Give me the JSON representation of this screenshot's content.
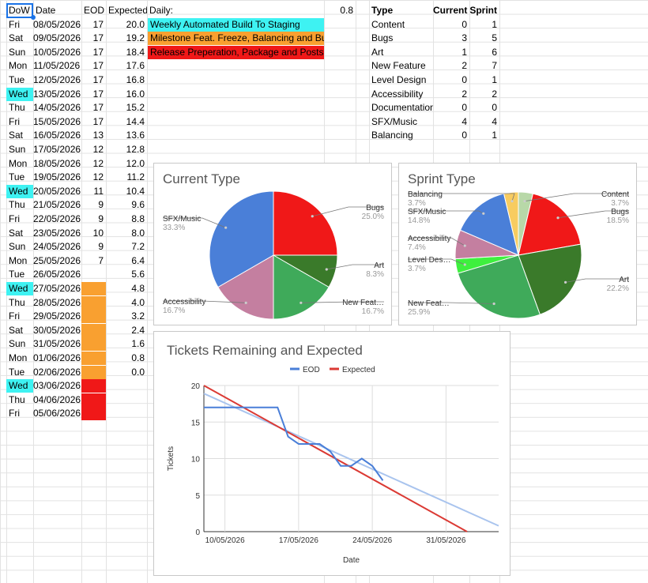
{
  "headers": {
    "dow": "DoW",
    "date": "Date",
    "eod": "EOD",
    "expected": "Expected",
    "daily": "Daily:",
    "daily_value": "0.8",
    "type": "Type",
    "current": "Current",
    "sprint": "Sprint"
  },
  "rows": [
    {
      "dow": "Fri",
      "date": "08/05/2026",
      "eod": "17",
      "expected": "20.0"
    },
    {
      "dow": "Sat",
      "date": "09/05/2026",
      "eod": "17",
      "expected": "19.2"
    },
    {
      "dow": "Sun",
      "date": "10/05/2026",
      "eod": "17",
      "expected": "18.4"
    },
    {
      "dow": "Mon",
      "date": "11/05/2026",
      "eod": "17",
      "expected": "17.6"
    },
    {
      "dow": "Tue",
      "date": "12/05/2026",
      "eod": "17",
      "expected": "16.8"
    },
    {
      "dow": "Wed",
      "date": "13/05/2026",
      "eod": "17",
      "expected": "16.0"
    },
    {
      "dow": "Thu",
      "date": "14/05/2026",
      "eod": "17",
      "expected": "15.2"
    },
    {
      "dow": "Fri",
      "date": "15/05/2026",
      "eod": "17",
      "expected": "14.4"
    },
    {
      "dow": "Sat",
      "date": "16/05/2026",
      "eod": "13",
      "expected": "13.6"
    },
    {
      "dow": "Sun",
      "date": "17/05/2026",
      "eod": "12",
      "expected": "12.8"
    },
    {
      "dow": "Mon",
      "date": "18/05/2026",
      "eod": "12",
      "expected": "12.0"
    },
    {
      "dow": "Tue",
      "date": "19/05/2026",
      "eod": "12",
      "expected": "11.2"
    },
    {
      "dow": "Wed",
      "date": "20/05/2026",
      "eod": "11",
      "expected": "10.4"
    },
    {
      "dow": "Thu",
      "date": "21/05/2026",
      "eod": "9",
      "expected": "9.6"
    },
    {
      "dow": "Fri",
      "date": "22/05/2026",
      "eod": "9",
      "expected": "8.8"
    },
    {
      "dow": "Sat",
      "date": "23/05/2026",
      "eod": "10",
      "expected": "8.0"
    },
    {
      "dow": "Sun",
      "date": "24/05/2026",
      "eod": "9",
      "expected": "7.2"
    },
    {
      "dow": "Mon",
      "date": "25/05/2026",
      "eod": "7",
      "expected": "6.4"
    },
    {
      "dow": "Tue",
      "date": "26/05/2026",
      "eod": "",
      "expected": "5.6"
    },
    {
      "dow": "Wed",
      "date": "27/05/2026",
      "eod": "",
      "expected": "4.8"
    },
    {
      "dow": "Thu",
      "date": "28/05/2026",
      "eod": "",
      "expected": "4.0"
    },
    {
      "dow": "Fri",
      "date": "29/05/2026",
      "eod": "",
      "expected": "3.2"
    },
    {
      "dow": "Sat",
      "date": "30/05/2026",
      "eod": "",
      "expected": "2.4"
    },
    {
      "dow": "Sun",
      "date": "31/05/2026",
      "eod": "",
      "expected": "1.6"
    },
    {
      "dow": "Mon",
      "date": "01/06/2026",
      "eod": "",
      "expected": "0.8"
    },
    {
      "dow": "Tue",
      "date": "02/06/2026",
      "eod": "",
      "expected": "0.0"
    },
    {
      "dow": "Wed",
      "date": "03/06/2026",
      "eod": "",
      "expected": ""
    },
    {
      "dow": "Thu",
      "date": "04/06/2026",
      "eod": "",
      "expected": ""
    },
    {
      "dow": "Fri",
      "date": "05/06/2026",
      "eod": "",
      "expected": ""
    }
  ],
  "legend_notes": [
    {
      "text": "Weekly Automated Build To Staging",
      "color": "#3ef2f2"
    },
    {
      "text": "Milestone Feat. Freeze, Balancing and Bugs",
      "color": "#f9a030"
    },
    {
      "text": "Release Preperation, Package and Posts",
      "color": "#f01818"
    }
  ],
  "types": [
    {
      "type": "Content",
      "current": "0",
      "sprint": "1"
    },
    {
      "type": "Bugs",
      "current": "3",
      "sprint": "5"
    },
    {
      "type": "Art",
      "current": "1",
      "sprint": "6"
    },
    {
      "type": "New Feature",
      "current": "2",
      "sprint": "7"
    },
    {
      "type": "Level Design",
      "current": "0",
      "sprint": "1"
    },
    {
      "type": "Accessibility",
      "current": "2",
      "sprint": "2"
    },
    {
      "type": "Documentation",
      "current": "0",
      "sprint": "0"
    },
    {
      "type": "SFX/Music",
      "current": "4",
      "sprint": "4"
    },
    {
      "type": "Balancing",
      "current": "0",
      "sprint": "1"
    }
  ],
  "colors": {
    "wed_highlight": "#3ef2f2",
    "orange": "#f9a030",
    "red": "#f01818",
    "eod_line": "#4a7fd8",
    "expected_line": "#db3a34",
    "trend_line": "#a9c4ee"
  },
  "chart_data": [
    {
      "type": "pie",
      "title": "Current Type",
      "slices": [
        {
          "label": "Bugs",
          "value": 3,
          "percent": "25.0%",
          "color": "#f01818"
        },
        {
          "label": "Art",
          "value": 1,
          "percent": "8.3%",
          "color": "#3a7a2a"
        },
        {
          "label": "New Feat…",
          "value": 2,
          "percent": "16.7%",
          "color": "#3faa5a"
        },
        {
          "label": "Accessibility",
          "value": 2,
          "percent": "16.7%",
          "color": "#c47fa0"
        },
        {
          "label": "SFX/Music",
          "value": 4,
          "percent": "33.3%",
          "color": "#4a7fd8"
        }
      ]
    },
    {
      "type": "pie",
      "title": "Sprint Type",
      "slices": [
        {
          "label": "Content",
          "value": 1,
          "percent": "3.7%",
          "color": "#b8d8a8"
        },
        {
          "label": "Bugs",
          "value": 5,
          "percent": "18.5%",
          "color": "#f01818"
        },
        {
          "label": "Art",
          "value": 6,
          "percent": "22.2%",
          "color": "#3a7a2a"
        },
        {
          "label": "New Feat…",
          "value": 7,
          "percent": "25.9%",
          "color": "#3faa5a"
        },
        {
          "label": "Level Des…",
          "value": 1,
          "percent": "3.7%",
          "color": "#3ef03e"
        },
        {
          "label": "Accessibility",
          "value": 2,
          "percent": "7.4%",
          "color": "#c47fa0"
        },
        {
          "label": "SFX/Music",
          "value": 4,
          "percent": "14.8%",
          "color": "#4a7fd8"
        },
        {
          "label": "Balancing",
          "value": 1,
          "percent": "3.7%",
          "color": "#f8cc60"
        }
      ]
    },
    {
      "type": "line",
      "title": "Tickets Remaining and Expected",
      "xlabel": "Date",
      "ylabel": "Tickets",
      "ylim": [
        0,
        20
      ],
      "yticks": [
        "0",
        "5",
        "10",
        "15",
        "20"
      ],
      "xticks": [
        "10/05/2026",
        "17/05/2026",
        "24/05/2026",
        "31/05/2026"
      ],
      "legend": "top",
      "series": [
        {
          "name": "EOD",
          "x": [
            "08/05/2026",
            "09/05/2026",
            "10/05/2026",
            "11/05/2026",
            "12/05/2026",
            "13/05/2026",
            "14/05/2026",
            "15/05/2026",
            "16/05/2026",
            "17/05/2026",
            "18/05/2026",
            "19/05/2026",
            "20/05/2026",
            "21/05/2026",
            "22/05/2026",
            "23/05/2026",
            "24/05/2026",
            "25/05/2026"
          ],
          "values": [
            17,
            17,
            17,
            17,
            17,
            17,
            17,
            17,
            13,
            12,
            12,
            12,
            11,
            9,
            9,
            10,
            9,
            7
          ]
        },
        {
          "name": "Expected",
          "x": [
            "08/05/2026",
            "02/06/2026"
          ],
          "values": [
            20,
            0
          ]
        }
      ],
      "trendline": {
        "x": [
          "08/05/2026",
          "05/06/2026"
        ],
        "values": [
          18.9,
          0.8
        ]
      }
    }
  ]
}
